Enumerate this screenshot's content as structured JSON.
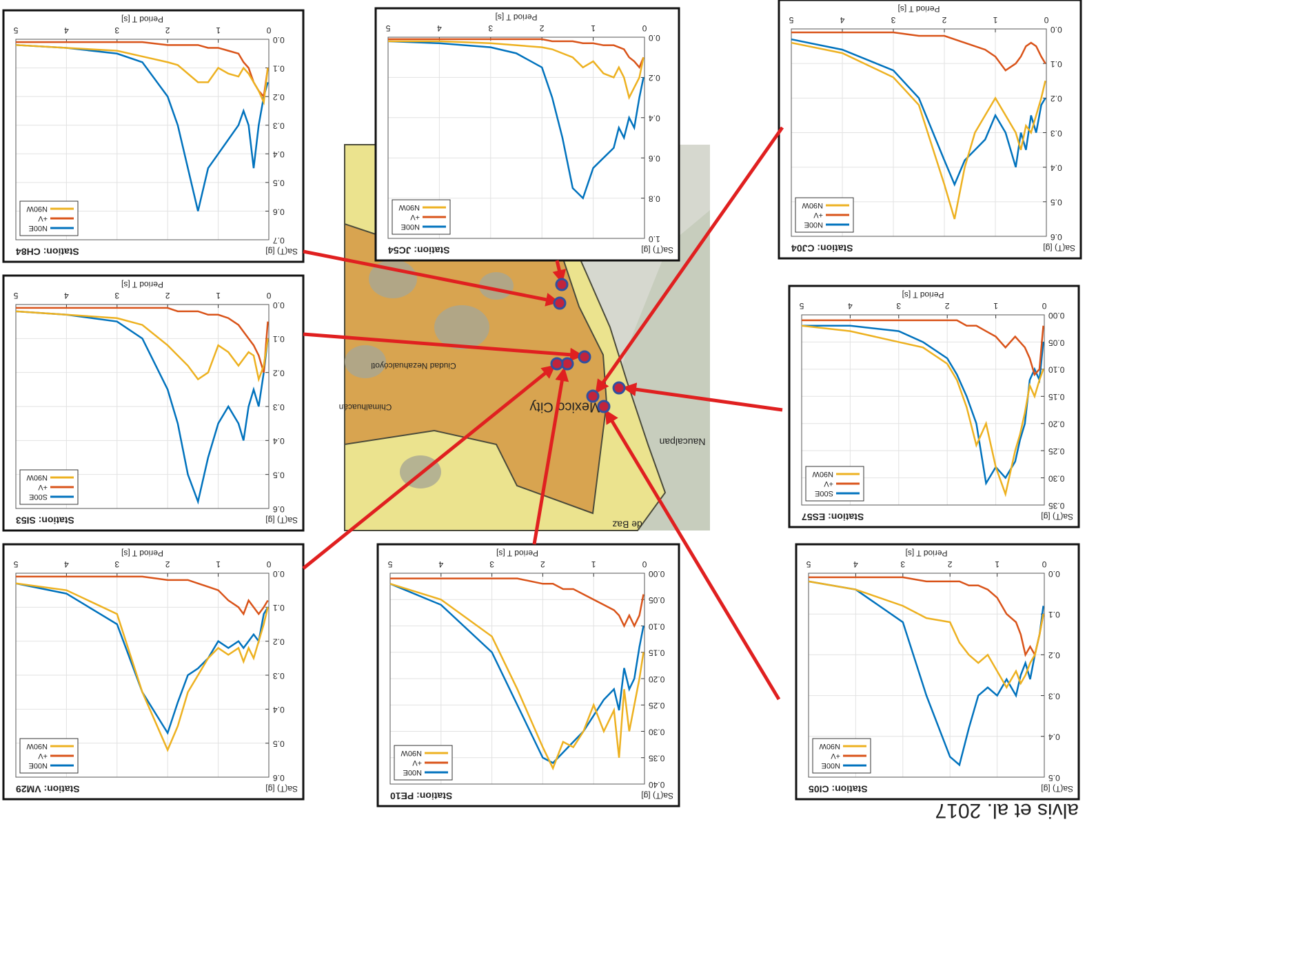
{
  "credit": "alvis et al. 2017",
  "map": {
    "labels": [
      "Mexico City",
      "Naucalpan",
      "de Baz",
      "Ciudad Nezahualcóyotl",
      "Chimalhuacán"
    ]
  },
  "chart_data": [
    {
      "type": "line",
      "title": "Station: CI05",
      "x_label": "Period T [s]",
      "y_label": "Sa(T) [g]",
      "x": [
        0.02,
        0.1,
        0.2,
        0.3,
        0.4,
        0.5,
        0.6,
        0.8,
        1.0,
        1.2,
        1.4,
        1.6,
        1.8,
        2.0,
        2.5,
        3,
        4,
        5
      ],
      "xlim": [
        0,
        5
      ],
      "xticks": [
        0,
        1,
        2,
        3,
        4,
        5
      ],
      "ylim": [
        0,
        0.5
      ],
      "yticks": [
        {
          "value": 0,
          "label": "0.0"
        },
        0.1,
        0.2,
        0.3,
        0.4,
        0.5
      ],
      "grid": true,
      "legend": "upper right",
      "series": [
        {
          "name": "N00E",
          "color": "#0072bd",
          "values": [
            0.08,
            0.15,
            0.2,
            0.26,
            0.22,
            0.25,
            0.3,
            0.26,
            0.3,
            0.28,
            0.3,
            0.38,
            0.47,
            0.45,
            0.3,
            0.12,
            0.04,
            0.02
          ]
        },
        {
          "name": "+V",
          "color": "#d95319",
          "values": [
            0.1,
            0.15,
            0.2,
            0.18,
            0.2,
            0.15,
            0.12,
            0.1,
            0.06,
            0.04,
            0.03,
            0.03,
            0.02,
            0.02,
            0.02,
            0.01,
            0.01,
            0.01
          ]
        },
        {
          "name": "N90W",
          "color": "#edb120",
          "values": [
            0.1,
            0.15,
            0.2,
            0.22,
            0.25,
            0.27,
            0.24,
            0.28,
            0.24,
            0.2,
            0.22,
            0.2,
            0.17,
            0.12,
            0.11,
            0.08,
            0.04,
            0.02
          ]
        }
      ]
    },
    {
      "type": "line",
      "title": "Station: ES57",
      "x_label": "Period T [s]",
      "y_label": "Sa(T) [g]",
      "x": [
        0.02,
        0.1,
        0.2,
        0.3,
        0.4,
        0.5,
        0.6,
        0.8,
        1.0,
        1.2,
        1.4,
        1.6,
        1.8,
        2.0,
        2.5,
        3,
        4,
        5
      ],
      "xlim": [
        0,
        5
      ],
      "xticks": [
        0,
        1,
        2,
        3,
        4,
        5
      ],
      "ylim": [
        0,
        0.35
      ],
      "yticks": [
        {
          "value": 0,
          "label": "0.00"
        },
        0.05,
        {
          "value": 0.1,
          "label": "0.10"
        },
        0.15,
        {
          "value": 0.2,
          "label": "0.20"
        },
        0.25,
        {
          "value": 0.3,
          "label": "0.30"
        },
        0.35
      ],
      "grid": true,
      "legend": "upper right",
      "series": [
        {
          "name": "S00E",
          "color": "#0072bd",
          "values": [
            0.05,
            0.12,
            0.1,
            0.12,
            0.2,
            0.23,
            0.27,
            0.3,
            0.28,
            0.31,
            0.2,
            0.15,
            0.11,
            0.08,
            0.05,
            0.03,
            0.02,
            0.02
          ]
        },
        {
          "name": "+V",
          "color": "#d95319",
          "values": [
            0.02,
            0.1,
            0.11,
            0.08,
            0.06,
            0.05,
            0.04,
            0.06,
            0.04,
            0.03,
            0.02,
            0.02,
            0.01,
            0.01,
            0.01,
            0.01,
            0.01,
            0.01
          ]
        },
        {
          "name": "N90W",
          "color": "#edb120",
          "values": [
            0.1,
            0.12,
            0.15,
            0.13,
            0.18,
            0.22,
            0.25,
            0.33,
            0.28,
            0.2,
            0.24,
            0.17,
            0.12,
            0.09,
            0.06,
            0.05,
            0.03,
            0.02
          ]
        }
      ]
    },
    {
      "type": "line",
      "title": "Station: CJ04",
      "x_label": "Period T [s]",
      "y_label": "Sa(T) [g]",
      "x": [
        0.02,
        0.1,
        0.2,
        0.3,
        0.4,
        0.5,
        0.6,
        0.8,
        1.0,
        1.2,
        1.4,
        1.6,
        1.8,
        2.0,
        2.5,
        3,
        4,
        5
      ],
      "xlim": [
        0,
        5
      ],
      "xticks": [
        0,
        1,
        2,
        3,
        4,
        5
      ],
      "ylim": [
        0,
        0.6
      ],
      "yticks": [
        {
          "value": 0,
          "label": "0.0"
        },
        0.1,
        0.2,
        0.3,
        0.4,
        0.5,
        0.6
      ],
      "grid": true,
      "legend": "upper right",
      "series": [
        {
          "name": "N00E",
          "color": "#0072bd",
          "values": [
            0.2,
            0.22,
            0.3,
            0.25,
            0.35,
            0.3,
            0.4,
            0.3,
            0.25,
            0.32,
            0.35,
            0.38,
            0.45,
            0.38,
            0.2,
            0.12,
            0.06,
            0.03
          ]
        },
        {
          "name": "+V",
          "color": "#d95319",
          "values": [
            0.1,
            0.08,
            0.05,
            0.04,
            0.05,
            0.08,
            0.1,
            0.12,
            0.08,
            0.06,
            0.05,
            0.04,
            0.03,
            0.02,
            0.02,
            0.01,
            0.01,
            0.01
          ]
        },
        {
          "name": "N90W",
          "color": "#edb120",
          "values": [
            0.15,
            0.2,
            0.25,
            0.3,
            0.28,
            0.35,
            0.3,
            0.25,
            0.2,
            0.25,
            0.3,
            0.4,
            0.55,
            0.45,
            0.22,
            0.14,
            0.07,
            0.04
          ]
        }
      ]
    },
    {
      "type": "line",
      "title": "Station: PE10",
      "x_label": "Period T [s]",
      "y_label": "Sa(T) [g]",
      "x": [
        0.02,
        0.1,
        0.2,
        0.3,
        0.4,
        0.5,
        0.6,
        0.8,
        1.0,
        1.2,
        1.4,
        1.6,
        1.8,
        2.0,
        2.5,
        3,
        4,
        5
      ],
      "xlim": [
        0,
        5
      ],
      "xticks": [
        0,
        1,
        2,
        3,
        4,
        5
      ],
      "ylim": [
        0,
        0.4
      ],
      "yticks": [
        {
          "value": 0,
          "label": "0.00"
        },
        0.05,
        {
          "value": 0.1,
          "label": "0.10"
        },
        0.15,
        {
          "value": 0.2,
          "label": "0.20"
        },
        0.25,
        {
          "value": 0.3,
          "label": "0.30"
        },
        0.35,
        {
          "value": 0.4,
          "label": "0.40"
        }
      ],
      "grid": true,
      "legend": "upper right",
      "series": [
        {
          "name": "N00E",
          "color": "#0072bd",
          "values": [
            0.1,
            0.14,
            0.2,
            0.22,
            0.18,
            0.26,
            0.22,
            0.24,
            0.27,
            0.3,
            0.32,
            0.34,
            0.36,
            0.35,
            0.25,
            0.15,
            0.06,
            0.02
          ]
        },
        {
          "name": "+V",
          "color": "#d95319",
          "values": [
            0.04,
            0.08,
            0.1,
            0.08,
            0.1,
            0.08,
            0.07,
            0.06,
            0.05,
            0.04,
            0.03,
            0.03,
            0.02,
            0.02,
            0.01,
            0.01,
            0.01,
            0.01
          ]
        },
        {
          "name": "N90W",
          "color": "#edb120",
          "values": [
            0.15,
            0.2,
            0.25,
            0.3,
            0.22,
            0.35,
            0.26,
            0.3,
            0.25,
            0.3,
            0.33,
            0.32,
            0.37,
            0.33,
            0.22,
            0.12,
            0.05,
            0.02
          ]
        }
      ]
    },
    {
      "type": "line",
      "title": "Station: JC54",
      "x_label": "Period T [s]",
      "y_label": "Sa(T) [g]",
      "x": [
        0.02,
        0.1,
        0.2,
        0.3,
        0.4,
        0.5,
        0.6,
        0.8,
        1.0,
        1.2,
        1.4,
        1.6,
        1.8,
        2.0,
        2.5,
        3,
        4,
        5
      ],
      "xlim": [
        0,
        5
      ],
      "xticks": [
        0,
        1,
        2,
        3,
        4,
        5
      ],
      "ylim": [
        0,
        1
      ],
      "yticks": [
        {
          "value": 0,
          "label": "0.0"
        },
        0.2,
        0.4,
        0.6,
        0.8,
        {
          "value": 1,
          "label": "1.0"
        }
      ],
      "grid": true,
      "legend": "upper right",
      "series": [
        {
          "name": "N00E",
          "color": "#0072bd",
          "values": [
            0.2,
            0.3,
            0.45,
            0.4,
            0.5,
            0.45,
            0.55,
            0.6,
            0.65,
            0.8,
            0.75,
            0.5,
            0.3,
            0.15,
            0.08,
            0.05,
            0.03,
            0.02
          ]
        },
        {
          "name": "+V",
          "color": "#d95319",
          "values": [
            0.1,
            0.15,
            0.12,
            0.1,
            0.06,
            0.05,
            0.04,
            0.04,
            0.03,
            0.03,
            0.02,
            0.02,
            0.02,
            0.01,
            0.01,
            0.01,
            0.01,
            0.01
          ]
        },
        {
          "name": "N90W",
          "color": "#edb120",
          "values": [
            0.1,
            0.2,
            0.25,
            0.3,
            0.2,
            0.15,
            0.2,
            0.18,
            0.12,
            0.15,
            0.1,
            0.08,
            0.06,
            0.05,
            0.04,
            0.03,
            0.02,
            0.02
          ]
        }
      ]
    },
    {
      "type": "line",
      "title": "Station: VM29",
      "x_label": "Period T [s]",
      "y_label": "Sa(T) [g]",
      "x": [
        0.02,
        0.1,
        0.2,
        0.3,
        0.4,
        0.5,
        0.6,
        0.8,
        1.0,
        1.2,
        1.4,
        1.6,
        1.8,
        2.0,
        2.5,
        3,
        4,
        5
      ],
      "xlim": [
        0,
        5
      ],
      "xticks": [
        0,
        1,
        2,
        3,
        4,
        5
      ],
      "ylim": [
        0,
        0.6
      ],
      "yticks": [
        {
          "value": 0,
          "label": "0.0"
        },
        0.1,
        0.2,
        0.3,
        0.4,
        0.5,
        0.6
      ],
      "grid": true,
      "legend": "upper right",
      "series": [
        {
          "name": "N00E",
          "color": "#0072bd",
          "values": [
            0.1,
            0.12,
            0.2,
            0.18,
            0.2,
            0.22,
            0.2,
            0.22,
            0.2,
            0.25,
            0.28,
            0.3,
            0.38,
            0.47,
            0.35,
            0.15,
            0.06,
            0.03
          ]
        },
        {
          "name": "+V",
          "color": "#d95319",
          "values": [
            0.08,
            0.1,
            0.12,
            0.1,
            0.08,
            0.12,
            0.1,
            0.08,
            0.05,
            0.04,
            0.03,
            0.02,
            0.02,
            0.02,
            0.01,
            0.01,
            0.01,
            0.01
          ]
        },
        {
          "name": "N90W",
          "color": "#edb120",
          "values": [
            0.1,
            0.15,
            0.2,
            0.25,
            0.22,
            0.26,
            0.22,
            0.24,
            0.22,
            0.25,
            0.3,
            0.35,
            0.45,
            0.52,
            0.35,
            0.12,
            0.05,
            0.03
          ]
        }
      ]
    },
    {
      "type": "line",
      "title": "Station: SI53",
      "x_label": "Period T [s]",
      "y_label": "Sa(T) [g]",
      "x": [
        0.02,
        0.1,
        0.2,
        0.3,
        0.4,
        0.5,
        0.6,
        0.8,
        1.0,
        1.2,
        1.4,
        1.6,
        1.8,
        2.0,
        2.5,
        3,
        4,
        5
      ],
      "xlim": [
        0,
        5
      ],
      "xticks": [
        0,
        1,
        2,
        3,
        4,
        5
      ],
      "ylim": [
        0,
        0.6
      ],
      "yticks": [
        {
          "value": 0,
          "label": "0.0"
        },
        0.1,
        0.2,
        0.3,
        0.4,
        0.5,
        0.6
      ],
      "grid": true,
      "legend": "upper right",
      "series": [
        {
          "name": "S00E",
          "color": "#0072bd",
          "values": [
            0.1,
            0.2,
            0.3,
            0.25,
            0.3,
            0.4,
            0.35,
            0.3,
            0.35,
            0.45,
            0.58,
            0.5,
            0.35,
            0.25,
            0.1,
            0.05,
            0.03,
            0.02
          ]
        },
        {
          "name": "+V",
          "color": "#d95319",
          "values": [
            0.05,
            0.2,
            0.15,
            0.12,
            0.1,
            0.08,
            0.06,
            0.04,
            0.03,
            0.03,
            0.02,
            0.02,
            0.02,
            0.01,
            0.01,
            0.01,
            0.01,
            0.01
          ]
        },
        {
          "name": "N90W",
          "color": "#edb120",
          "values": [
            0.1,
            0.18,
            0.22,
            0.15,
            0.14,
            0.16,
            0.18,
            0.14,
            0.12,
            0.2,
            0.22,
            0.18,
            0.15,
            0.12,
            0.06,
            0.04,
            0.03,
            0.02
          ]
        }
      ]
    },
    {
      "type": "line",
      "title": "Station: CH84",
      "x_label": "Period T [s]",
      "y_label": "Sa(T) [g]",
      "x": [
        0.02,
        0.1,
        0.2,
        0.3,
        0.4,
        0.5,
        0.6,
        0.8,
        1.0,
        1.2,
        1.4,
        1.6,
        1.8,
        2.0,
        2.5,
        3,
        4,
        5
      ],
      "xlim": [
        0,
        5
      ],
      "xticks": [
        0,
        1,
        2,
        3,
        4,
        5
      ],
      "ylim": [
        0,
        0.7
      ],
      "yticks": [
        {
          "value": 0,
          "label": "0.0"
        },
        0.1,
        0.2,
        0.3,
        0.4,
        0.5,
        0.6,
        0.7
      ],
      "grid": true,
      "legend": "upper right",
      "series": [
        {
          "name": "N00E",
          "color": "#0072bd",
          "values": [
            0.15,
            0.2,
            0.3,
            0.45,
            0.3,
            0.25,
            0.3,
            0.35,
            0.4,
            0.45,
            0.6,
            0.45,
            0.3,
            0.2,
            0.08,
            0.05,
            0.03,
            0.02
          ]
        },
        {
          "name": "+V",
          "color": "#d95319",
          "values": [
            0.1,
            0.2,
            0.18,
            0.15,
            0.1,
            0.08,
            0.05,
            0.04,
            0.03,
            0.03,
            0.02,
            0.02,
            0.02,
            0.02,
            0.01,
            0.01,
            0.01,
            0.01
          ]
        },
        {
          "name": "N90W",
          "color": "#edb120",
          "values": [
            0.1,
            0.22,
            0.18,
            0.15,
            0.12,
            0.1,
            0.13,
            0.12,
            0.1,
            0.15,
            0.15,
            0.12,
            0.09,
            0.08,
            0.06,
            0.04,
            0.03,
            0.02
          ]
        }
      ]
    }
  ]
}
